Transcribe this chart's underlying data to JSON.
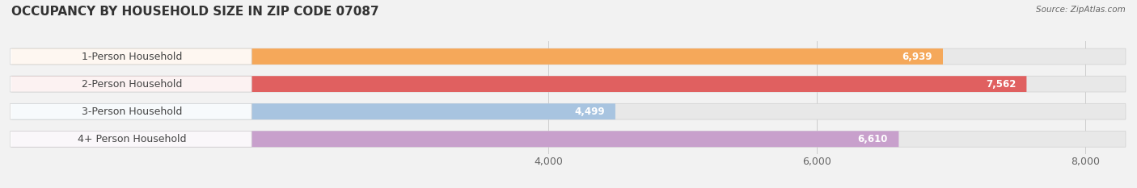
{
  "title": "OCCUPANCY BY HOUSEHOLD SIZE IN ZIP CODE 07087",
  "source": "Source: ZipAtlas.com",
  "categories": [
    "1-Person Household",
    "2-Person Household",
    "3-Person Household",
    "4+ Person Household"
  ],
  "values": [
    6939,
    7562,
    4499,
    6610
  ],
  "bar_colors": [
    "#F5A85A",
    "#E06060",
    "#A8C4E0",
    "#C8A0CC"
  ],
  "label_bg_colors": [
    "#F5C08A",
    "#E88080",
    "#B8D4F0",
    "#D8B0DC"
  ],
  "xlim": [
    0,
    8300
  ],
  "x_axis_min": 0,
  "xticks": [
    4000,
    6000,
    8000
  ],
  "xtick_labels": [
    "4,000",
    "6,000",
    "8,000"
  ],
  "value_labels": [
    "6,939",
    "7,562",
    "4,499",
    "6,610"
  ],
  "background_color": "#f2f2f2",
  "bar_bg_color": "#e8e8e8",
  "title_fontsize": 11,
  "label_fontsize": 9,
  "value_fontsize": 8.5,
  "tick_fontsize": 9
}
